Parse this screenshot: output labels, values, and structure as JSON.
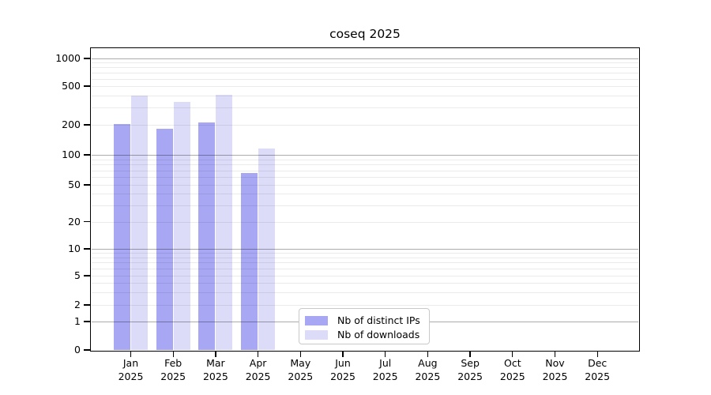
{
  "chart_data": {
    "type": "bar",
    "title": "coseq 2025",
    "categories": [
      "Jan",
      "Feb",
      "Mar",
      "Apr",
      "May",
      "Jun",
      "Jul",
      "Aug",
      "Sep",
      "Oct",
      "Nov",
      "Dec"
    ],
    "category_year": "2025",
    "series": [
      {
        "name": "Nb of distinct IPs",
        "color": "#a7a7f3",
        "values": [
          205,
          182,
          210,
          66,
          0,
          0,
          0,
          0,
          0,
          0,
          0,
          0
        ]
      },
      {
        "name": "Nb of downloads",
        "color": "#dcdcf9",
        "values": [
          400,
          345,
          410,
          115,
          0,
          0,
          0,
          0,
          0,
          0,
          0,
          0
        ]
      }
    ],
    "yticks": [
      0,
      1,
      2,
      5,
      10,
      20,
      50,
      100,
      200,
      500,
      1000
    ],
    "ytick_labels": [
      "0",
      "1",
      "2",
      "5",
      "10",
      "20",
      "50",
      "100",
      "200",
      "500",
      "1000"
    ],
    "ylim": [
      0,
      1270
    ],
    "scale": "pseudo-log (decades log-spaced, compressed 0-1 linear segment)",
    "grid": "horizontal; dark lines at 1,10,100,1000; faint minor lines at 2-9 per decade",
    "legend_position": "inside plot, bottom-center",
    "legend_border_color": "#c9c9c9",
    "axis_color": "#000000"
  }
}
